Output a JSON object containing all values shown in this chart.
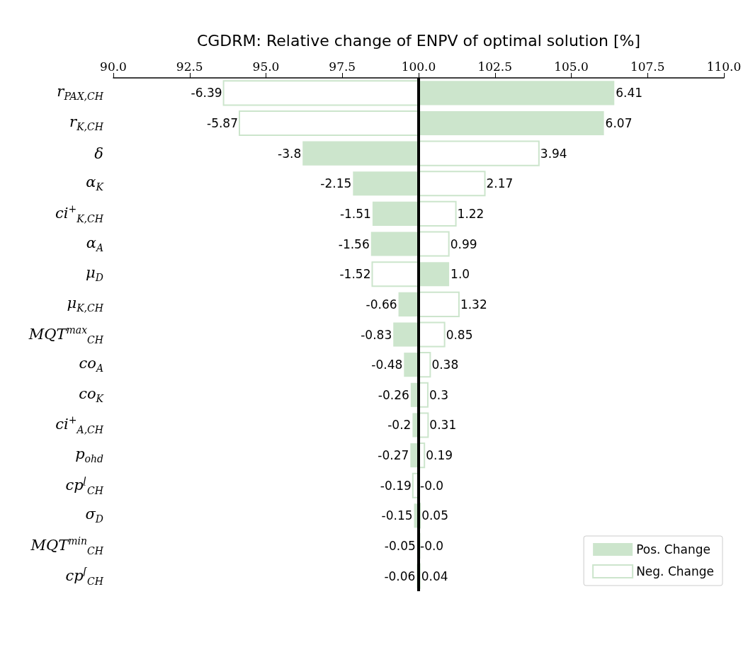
{
  "chart_data": {
    "type": "bar",
    "orientation": "horizontal",
    "xlabel": "CGDRM: Relative change of ENPV of optimal solution [%]",
    "categories": [
      "r$_{PAX,CH}$",
      "r$_{K,CH}$",
      "δ",
      "α$_{K}$",
      "ci$^{+}$$_{K,CH}$",
      "α$_{A}$",
      "μ$_{D}$",
      "μ$_{K,CH}$",
      "MQT$^{max}$$_{CH}$",
      "co$_{A}$",
      "co$_{K}$",
      "ci$^{+}$$_{A,CH}$",
      "p$_{ohd}$",
      "cp$^{⌊}$$_{CH}$",
      "σ$_{D}$",
      "MQT$^{min}$$_{CH}$",
      "cp$^{⌈}$$_{CH}$"
    ],
    "xlim": [
      90,
      110
    ],
    "xticks": [
      {
        "value": 90,
        "label": "90.0"
      },
      {
        "value": 92.5,
        "label": "92.5"
      },
      {
        "value": 95,
        "label": "95.0"
      },
      {
        "value": 97.5,
        "label": "97.5"
      },
      {
        "value": 100,
        "label": "100.0"
      },
      {
        "value": 102.5,
        "label": "102.5"
      },
      {
        "value": 105,
        "label": "105.0"
      },
      {
        "value": 107.5,
        "label": "107.5"
      },
      {
        "value": 110,
        "label": "110.0"
      }
    ],
    "series": [
      {
        "name": "Pos. Change",
        "color": "#cce5cc",
        "base": [
          100,
          100,
          100,
          100,
          100,
          100,
          100,
          100,
          100,
          100,
          100,
          100,
          100,
          100,
          100,
          100,
          100
        ],
        "values": [
          6.41,
          6.07,
          -3.8,
          -2.15,
          -1.51,
          -1.56,
          1.0,
          -0.66,
          -0.83,
          -0.48,
          -0.26,
          -0.2,
          -0.27,
          0,
          -0.15,
          -0.05,
          -0.06
        ],
        "value_labels": [
          "6.41",
          "6.07",
          "-3.8",
          "-2.15",
          "-1.51",
          "-1.56",
          "1.0",
          "-0.66",
          "-0.83",
          "-0.48",
          "-0.26",
          "-0.2",
          "-0.27",
          "-0.0",
          "-0.15",
          "-0.05",
          "-0.06"
        ]
      },
      {
        "name": "Neg. Change",
        "color": "#cce5cc",
        "base": [
          100,
          100,
          100,
          100,
          100,
          100,
          100,
          100,
          100,
          100,
          100,
          100,
          100,
          100,
          100,
          100,
          100
        ],
        "values": [
          -6.39,
          -5.87,
          3.94,
          2.17,
          1.22,
          0.99,
          -1.52,
          1.32,
          0.85,
          0.38,
          0.3,
          0.31,
          0.19,
          -0.19,
          0.05,
          0,
          0.04
        ],
        "value_labels": [
          "-6.39",
          "-5.87",
          "3.94",
          "2.17",
          "1.22",
          "0.99",
          "-1.52",
          "1.32",
          "0.85",
          "0.38",
          "0.3",
          "0.31",
          "0.19",
          "-0.19",
          "0.05",
          "-0.0",
          "0.04"
        ]
      }
    ],
    "ref_lines": [
      {
        "axis": "x",
        "value": 100,
        "color": "#000000"
      }
    ],
    "grid": false,
    "legend": "bottom right"
  }
}
